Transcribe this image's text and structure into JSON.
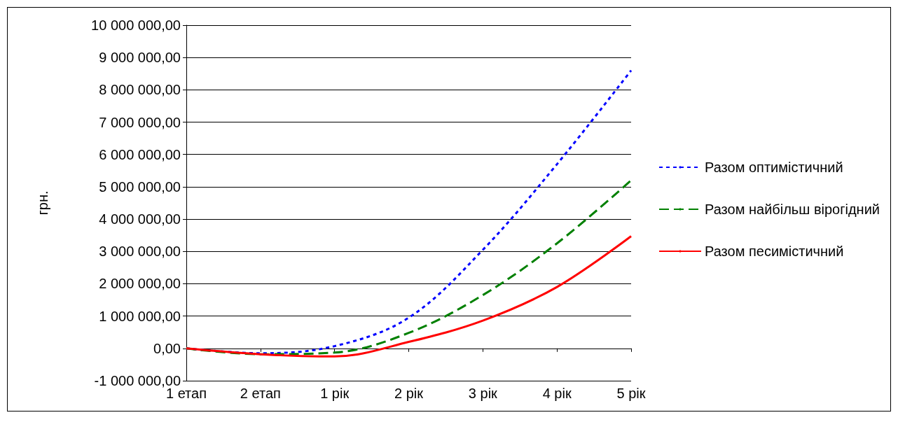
{
  "chart_data": {
    "type": "line",
    "ylabel": "грн.",
    "categories": [
      "1 етап",
      "2 етап",
      "1 рік",
      "2 рік",
      "3 рік",
      "4 рік",
      "5 рік"
    ],
    "series": [
      {
        "name": "Разом оптимістичний",
        "color": "#0000ff",
        "line_style": "dotted",
        "values": [
          0,
          -150000,
          70000,
          950000,
          3050000,
          5700000,
          8600000
        ]
      },
      {
        "name": "Разом найбільш вірогідний",
        "color": "#008000",
        "line_style": "dashed",
        "values": [
          0,
          -180000,
          -130000,
          480000,
          1650000,
          3250000,
          5200000
        ]
      },
      {
        "name": "Разом песимістичний",
        "color": "#ff0000",
        "line_style": "solid",
        "values": [
          0,
          -180000,
          -250000,
          200000,
          860000,
          1900000,
          3470000
        ]
      }
    ],
    "ylim": [
      -1000000,
      10000000
    ],
    "yticks": [
      {
        "value": -1000000,
        "label": "-1 000 000,00"
      },
      {
        "value": 0,
        "label": "0,00"
      },
      {
        "value": 1000000,
        "label": "1 000 000,00"
      },
      {
        "value": 2000000,
        "label": "2 000 000,00"
      },
      {
        "value": 3000000,
        "label": "3 000 000,00"
      },
      {
        "value": 4000000,
        "label": "4 000 000,00"
      },
      {
        "value": 5000000,
        "label": "5 000 000,00"
      },
      {
        "value": 6000000,
        "label": "6 000 000,00"
      },
      {
        "value": 7000000,
        "label": "7 000 000,00"
      },
      {
        "value": 8000000,
        "label": "8 000 000,00"
      },
      {
        "value": 9000000,
        "label": "9 000 000,00"
      },
      {
        "value": 10000000,
        "label": "10 000 000,00"
      }
    ],
    "grid": "y",
    "legend": "right",
    "marker": "none"
  }
}
